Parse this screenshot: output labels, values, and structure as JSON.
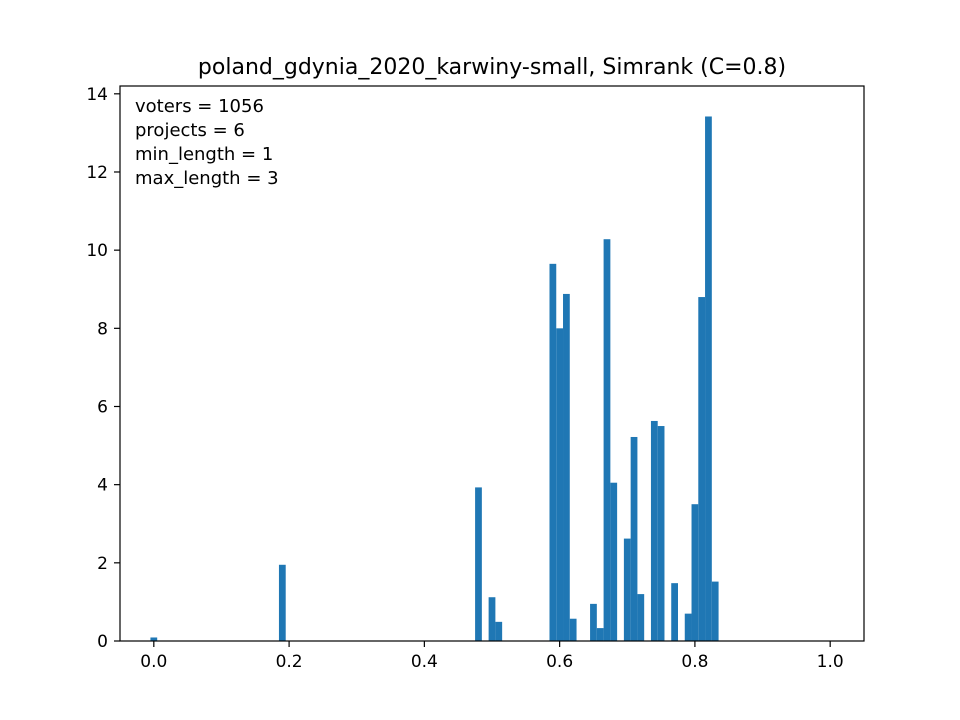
{
  "chart_data": {
    "type": "bar",
    "title": "poland_gdynia_2020_karwiny-small, Simrank (C=0.8)",
    "xlabel": "",
    "ylabel": "",
    "xlim": [
      -0.05,
      1.05
    ],
    "ylim": [
      0,
      14.2
    ],
    "x_ticks": [
      0.0,
      0.2,
      0.4,
      0.6,
      0.8,
      1.0
    ],
    "x_tick_labels": [
      "0.0",
      "0.2",
      "0.4",
      "0.6",
      "0.8",
      "1.0"
    ],
    "y_ticks": [
      0,
      2,
      4,
      6,
      8,
      10,
      12,
      14
    ],
    "y_tick_labels": [
      "0",
      "2",
      "4",
      "6",
      "8",
      "10",
      "12",
      "14"
    ],
    "bin_width": 0.01,
    "bar_color": "#1f77b4",
    "grid": false,
    "annotations": [
      "voters = 1056",
      "projects = 6",
      "min_length = 1",
      "max_length = 3"
    ],
    "bins": [
      {
        "x": 0.0,
        "value": 0.09
      },
      {
        "x": 0.19,
        "value": 1.95
      },
      {
        "x": 0.48,
        "value": 3.93
      },
      {
        "x": 0.5,
        "value": 1.12
      },
      {
        "x": 0.51,
        "value": 0.49
      },
      {
        "x": 0.59,
        "value": 9.65
      },
      {
        "x": 0.6,
        "value": 8.0
      },
      {
        "x": 0.61,
        "value": 8.88
      },
      {
        "x": 0.62,
        "value": 0.57
      },
      {
        "x": 0.65,
        "value": 0.95
      },
      {
        "x": 0.66,
        "value": 0.33
      },
      {
        "x": 0.67,
        "value": 10.28
      },
      {
        "x": 0.68,
        "value": 4.05
      },
      {
        "x": 0.7,
        "value": 2.62
      },
      {
        "x": 0.71,
        "value": 5.22
      },
      {
        "x": 0.72,
        "value": 1.2
      },
      {
        "x": 0.74,
        "value": 5.63
      },
      {
        "x": 0.75,
        "value": 5.5
      },
      {
        "x": 0.77,
        "value": 1.48
      },
      {
        "x": 0.79,
        "value": 0.7
      },
      {
        "x": 0.8,
        "value": 3.5
      },
      {
        "x": 0.81,
        "value": 8.8
      },
      {
        "x": 0.82,
        "value": 13.42
      },
      {
        "x": 0.83,
        "value": 1.52
      }
    ]
  }
}
